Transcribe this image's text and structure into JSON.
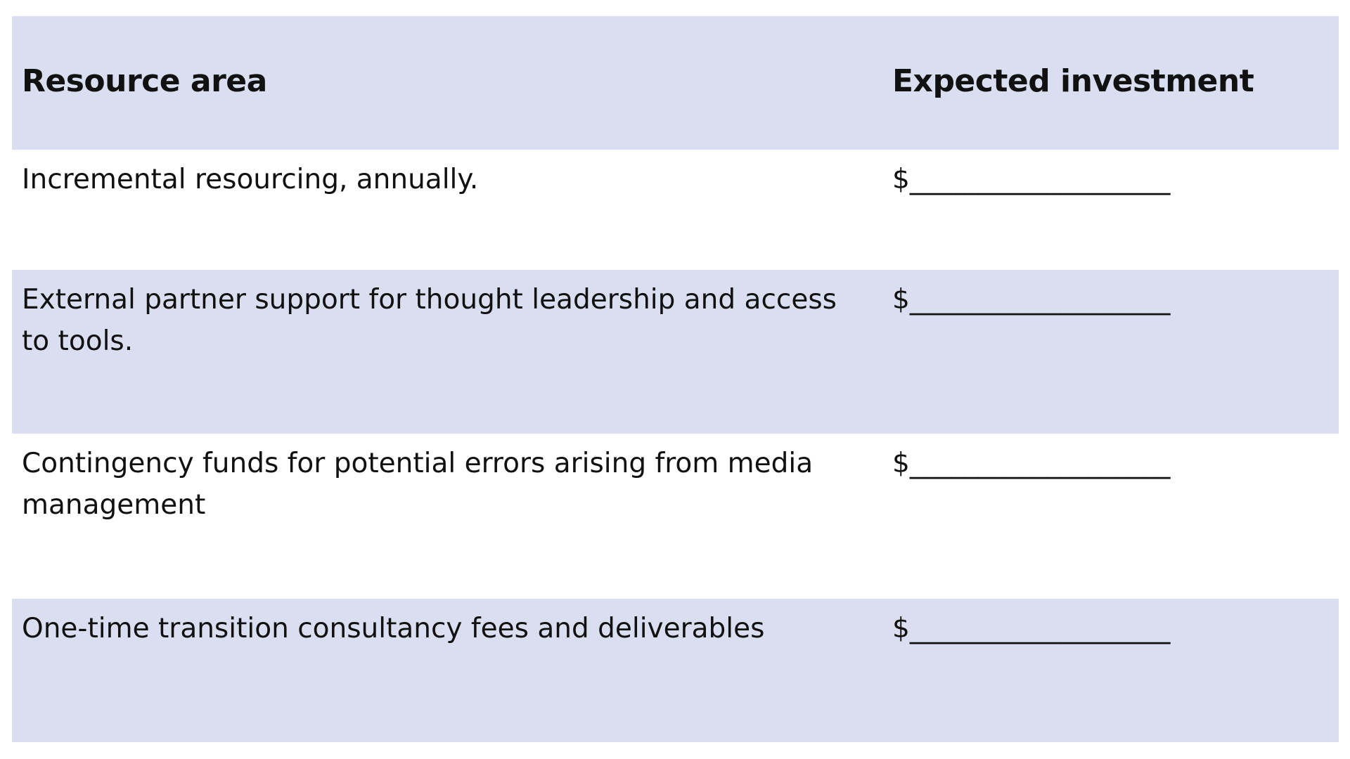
{
  "table": {
    "headers": {
      "resource_area": "Resource area",
      "expected_investment": "Expected investment"
    },
    "rows": [
      {
        "resource": "Incremental resourcing, annually.",
        "amount": "$___________________"
      },
      {
        "resource": "External partner support for thought leadership and access to tools.",
        "amount": "$___________________"
      },
      {
        "resource": "Contingency funds for potential errors arising from media management",
        "amount": "$___________________"
      },
      {
        "resource": "One-time transition consultancy fees and deliverables",
        "amount": "$___________________"
      }
    ]
  },
  "colors": {
    "shaded_row": "#d9dff0",
    "text": "#111111",
    "background": "#ffffff"
  }
}
